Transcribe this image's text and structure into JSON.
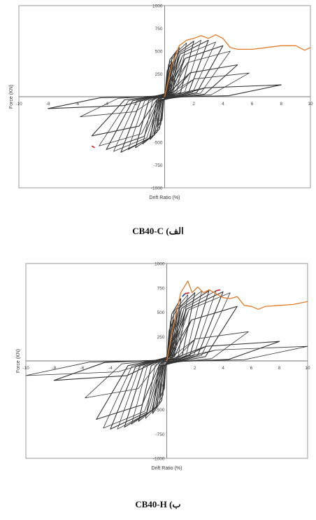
{
  "chart_data": [
    {
      "type": "line",
      "caption": "CB40-C (الف",
      "xlabel": "Drift Ratio (%)",
      "ylabel": "Force (KN)",
      "xlim": [
        -10,
        10
      ],
      "ylim": [
        -1000,
        1000
      ],
      "xticks": [
        "-10",
        "-8",
        "-6",
        "-4",
        "-2",
        "0",
        "2",
        "4",
        "6",
        "8",
        "10"
      ],
      "yticks": [
        "1000",
        "750",
        "500",
        "250",
        "0",
        "-250",
        "-500",
        "-750",
        "-1000"
      ],
      "series": [
        {
          "role": "hysteresis",
          "color": "#333333",
          "peaks": [
            0.5,
            0.75,
            1.0,
            1.5,
            2.0,
            2.5,
            3.0,
            3.5,
            4.0,
            4.5,
            5.0,
            5.8,
            8.0
          ],
          "posForce": [
            380,
            470,
            540,
            590,
            610,
            620,
            620,
            600,
            560,
            500,
            350,
            260,
            130
          ],
          "negForce": [
            -330,
            -410,
            -470,
            -520,
            -560,
            -580,
            -610,
            -600,
            -580,
            -540,
            -430,
            -220,
            -130
          ]
        },
        {
          "role": "envelope",
          "color": "#e07b2a",
          "x": [
            0,
            0.5,
            1.0,
            1.5,
            2.0,
            2.5,
            3.0,
            3.5,
            4.0,
            4.5,
            5.0,
            6.0,
            7.0,
            8.0,
            9.0,
            9.6,
            10.0
          ],
          "y": [
            0,
            350,
            560,
            620,
            640,
            670,
            640,
            680,
            640,
            540,
            520,
            520,
            540,
            560,
            560,
            510,
            540
          ]
        },
        {
          "role": "negative-peak",
          "color": "#d03030",
          "x": [
            -5.0,
            -4.8
          ],
          "y": [
            -540,
            -560
          ]
        }
      ]
    },
    {
      "type": "line",
      "caption": "CB40-H (ب",
      "xlabel": "Drift Ratio (%)",
      "ylabel": "Force (KN)",
      "xlim": [
        -10,
        10
      ],
      "ylim": [
        -1000,
        1000
      ],
      "xticks": [
        "-10",
        "-8",
        "-6",
        "-4",
        "-2",
        "0",
        "2",
        "4",
        "6",
        "8",
        "10"
      ],
      "yticks": [
        "1000",
        "750",
        "500",
        "250",
        "0",
        "-250",
        "-500",
        "-750",
        "-1000"
      ],
      "series": [
        {
          "role": "hysteresis",
          "color": "#333333",
          "peaks": [
            0.5,
            0.75,
            1.0,
            1.5,
            2.0,
            2.5,
            3.0,
            3.5,
            4.0,
            4.5,
            5.0,
            5.8,
            8.0,
            10.0
          ],
          "posForce": [
            420,
            540,
            640,
            680,
            700,
            720,
            720,
            720,
            710,
            700,
            560,
            300,
            200,
            150
          ],
          "negForce": [
            -380,
            -470,
            -540,
            -590,
            -620,
            -650,
            -680,
            -700,
            -700,
            -690,
            -600,
            -380,
            -200,
            -150
          ]
        },
        {
          "role": "envelope",
          "color": "#e07b2a",
          "x": [
            0,
            0.5,
            1.0,
            1.2,
            1.5,
            1.8,
            2.2,
            2.6,
            3.0,
            3.5,
            4.0,
            4.5,
            5.0,
            5.5,
            6.0,
            6.5,
            7.0,
            8.0,
            9.0,
            10.0
          ],
          "y": [
            0,
            380,
            700,
            750,
            820,
            700,
            760,
            700,
            730,
            690,
            650,
            640,
            660,
            570,
            560,
            530,
            560,
            570,
            580,
            610
          ]
        },
        {
          "role": "blue-marker",
          "color": "#2a4fb0",
          "x": [
            1.1,
            1.3
          ],
          "y": [
            660,
            690
          ]
        },
        {
          "role": "red-marker-1",
          "color": "#d03030",
          "x": [
            1.3,
            1.6
          ],
          "y": [
            690,
            700
          ]
        },
        {
          "role": "red-marker-2",
          "color": "#d03030",
          "x": [
            3.5,
            3.8
          ],
          "y": [
            720,
            730
          ]
        }
      ]
    }
  ]
}
